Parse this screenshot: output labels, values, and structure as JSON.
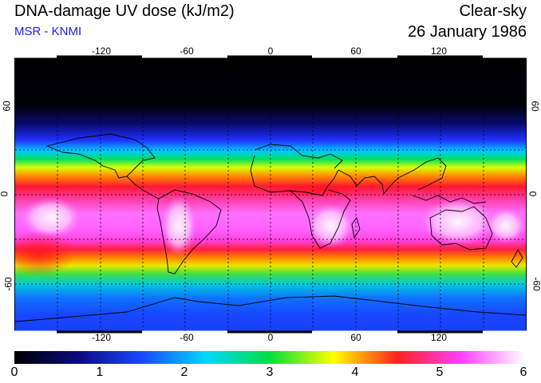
{
  "header": {
    "title": "DNA-damage UV dose (kJ/m2)",
    "subtitle": "MSR - KNMI",
    "sky_type": "Clear-sky",
    "date": "26 January 1986"
  },
  "map": {
    "longitude_ticks": [
      "-120",
      "-60",
      "0",
      "60",
      "120"
    ],
    "latitude_ticks": [
      "60",
      "0",
      "-60"
    ],
    "latitude_ticks_right": [
      "60",
      "0",
      "-60"
    ]
  },
  "colorbar": {
    "labels": [
      "0",
      "1",
      "2",
      "3",
      "4",
      "5",
      "6"
    ],
    "colors": [
      "#000000",
      "#0a0a80",
      "#1a48ff",
      "#00d8ff",
      "#00e040",
      "#ffff00",
      "#ff2020",
      "#ff40ff",
      "#ffffff"
    ]
  }
}
